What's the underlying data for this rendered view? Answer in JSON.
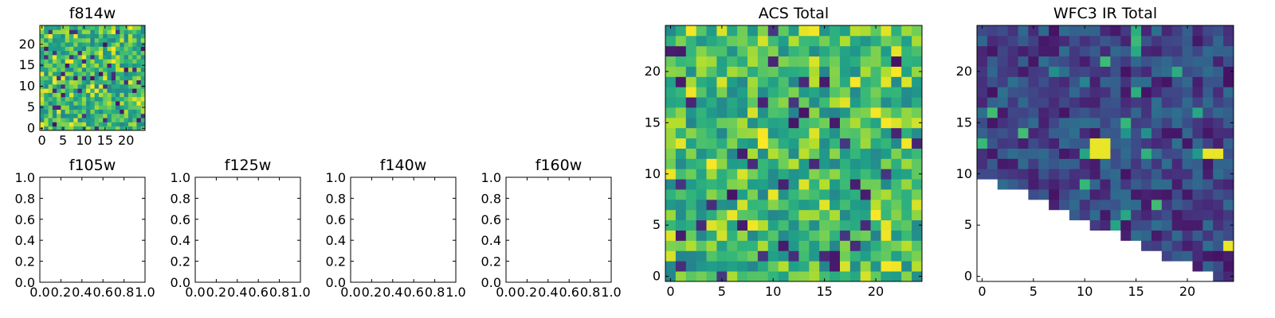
{
  "figure": {
    "panels": [
      {
        "id": "f814w",
        "title": "f814w"
      },
      {
        "id": "f105w",
        "title": "f105w"
      },
      {
        "id": "f125w",
        "title": "f125w"
      },
      {
        "id": "f140w",
        "title": "f140w"
      },
      {
        "id": "f160w",
        "title": "f160w"
      },
      {
        "id": "acs_total",
        "title": "ACS Total"
      },
      {
        "id": "wfc3_ir_total",
        "title": "WFC3 IR Total"
      }
    ]
  },
  "chart_data": [
    {
      "panel": "f814w",
      "type": "heatmap",
      "title": "f814w",
      "grid_size": 25,
      "xlim": [
        0,
        25
      ],
      "ylim": [
        0,
        25
      ],
      "xticks": [
        0,
        5,
        10,
        15,
        20
      ],
      "yticks": [
        0,
        5,
        10,
        15,
        20
      ],
      "colormap": "viridis",
      "seed": 814,
      "distribution": "mostly-high-noise",
      "mask": "none"
    },
    {
      "panel": "f105w",
      "type": "empty",
      "title": "f105w",
      "xlim": [
        0.0,
        1.0
      ],
      "ylim": [
        0.0,
        1.0
      ],
      "xticks": [
        "0.0",
        "0.2",
        "0.4",
        "0.6",
        "0.8",
        "1.0"
      ],
      "yticks": [
        "0.0",
        "0.2",
        "0.4",
        "0.6",
        "0.8",
        "1.0"
      ]
    },
    {
      "panel": "f125w",
      "type": "empty",
      "title": "f125w",
      "xlim": [
        0.0,
        1.0
      ],
      "ylim": [
        0.0,
        1.0
      ],
      "xticks": [
        "0.0",
        "0.2",
        "0.4",
        "0.6",
        "0.8",
        "1.0"
      ],
      "yticks": [
        "0.0",
        "0.2",
        "0.4",
        "0.6",
        "0.8",
        "1.0"
      ]
    },
    {
      "panel": "f140w",
      "type": "empty",
      "title": "f140w",
      "xlim": [
        0.0,
        1.0
      ],
      "ylim": [
        0.0,
        1.0
      ],
      "xticks": [
        "0.0",
        "0.2",
        "0.4",
        "0.6",
        "0.8",
        "1.0"
      ],
      "yticks": [
        "0.0",
        "0.2",
        "0.4",
        "0.6",
        "0.8",
        "1.0"
      ]
    },
    {
      "panel": "f160w",
      "type": "empty",
      "title": "f160w",
      "xlim": [
        0.0,
        1.0
      ],
      "ylim": [
        0.0,
        1.0
      ],
      "xticks": [
        "0.0",
        "0.2",
        "0.4",
        "0.6",
        "0.8",
        "1.0"
      ],
      "yticks": [
        "0.0",
        "0.2",
        "0.4",
        "0.6",
        "0.8",
        "1.0"
      ]
    },
    {
      "panel": "acs_total",
      "type": "heatmap",
      "title": "ACS Total",
      "grid_size": 25,
      "xlim": [
        0,
        25
      ],
      "ylim": [
        0,
        25
      ],
      "xticks": [
        0,
        5,
        10,
        15,
        20
      ],
      "yticks": [
        0,
        5,
        10,
        15,
        20
      ],
      "colormap": "viridis",
      "seed": 2017,
      "distribution": "mostly-high-noise",
      "mask": "none"
    },
    {
      "panel": "wfc3_ir_total",
      "type": "heatmap",
      "title": "WFC3 IR Total",
      "grid_size": 25,
      "xlim": [
        0,
        25
      ],
      "ylim": [
        0,
        25
      ],
      "xticks": [
        0,
        5,
        10,
        15,
        20
      ],
      "yticks": [
        0,
        5,
        10,
        15,
        20
      ],
      "colormap": "viridis",
      "seed": 3161,
      "distribution": "mostly-low-noise",
      "mask": "lower-right-triangle",
      "mask_edge": [
        [
          0,
          10.5
        ],
        [
          24,
          0
        ]
      ],
      "hotspots": [
        [
          11,
          12
        ],
        [
          12,
          12
        ],
        [
          11,
          13
        ],
        [
          12,
          13
        ],
        [
          22,
          12
        ],
        [
          23,
          12
        ],
        [
          24,
          3
        ]
      ]
    }
  ]
}
